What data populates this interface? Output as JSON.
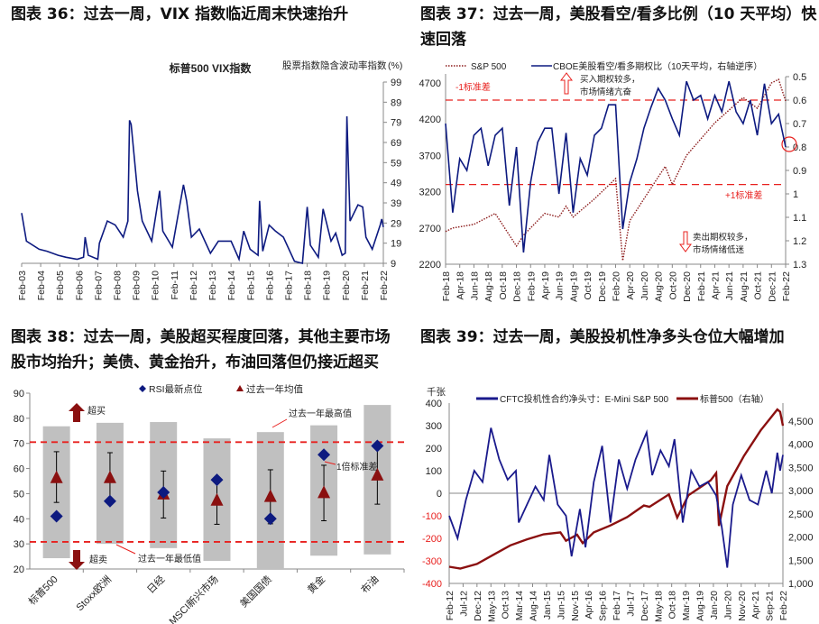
{
  "titles": {
    "c36": "图表 36：过去一周，VIX 指数临近周末快速抬升",
    "c37a": "图表 37：过去一周，美股看空/看多比例（10 天平均）快",
    "c37b": "速回落",
    "c38a": "图表 38：过去一周，美股超买程度回落，其他主要市场",
    "c38b": "股市均抬升；美债、黄金抬升，布油回落但仍接近超买",
    "c39": "图表 39：过去一周，美股投机性净多头仓位大幅增加"
  },
  "chart_data": [
    {
      "type": "line",
      "title": "标普500 VIX指数",
      "ylabel": "股票指数隐含波动率指数",
      "yunit": "(%)",
      "ylim": [
        9,
        99
      ],
      "yticks": [
        9,
        19,
        29,
        39,
        49,
        59,
        69,
        79,
        89,
        99
      ],
      "yaxis": "right",
      "xticks": [
        "Feb-03",
        "Feb-04",
        "Feb-05",
        "Feb-06",
        "Feb-07",
        "Feb-08",
        "Feb-09",
        "Feb-10",
        "Feb-11",
        "Feb-12",
        "Feb-13",
        "Feb-14",
        "Feb-15",
        "Feb-16",
        "Feb-17",
        "Feb-18",
        "Feb-19",
        "Feb-20",
        "Feb-21",
        "Feb-22"
      ],
      "color": "#0d1a80",
      "series": [
        {
          "x": [
            "2003-02",
            "2003-05",
            "2004-01",
            "2004-06",
            "2005-01",
            "2005-06",
            "2006-01",
            "2006-05",
            "2006-06",
            "2006-08",
            "2007-02",
            "2007-03",
            "2007-08",
            "2008-01",
            "2008-06",
            "2008-09",
            "2008-10",
            "2008-11",
            "2009-03",
            "2009-06",
            "2009-12",
            "2010-05",
            "2010-07",
            "2011-01",
            "2011-08",
            "2011-10",
            "2012-01",
            "2012-06",
            "2013-01",
            "2013-06",
            "2014-02",
            "2014-07",
            "2014-10",
            "2015-02",
            "2015-07",
            "2015-08",
            "2015-10",
            "2016-02",
            "2016-06",
            "2016-11",
            "2017-06",
            "2017-11",
            "2018-02",
            "2018-04",
            "2018-09",
            "2018-12",
            "2019-05",
            "2019-08",
            "2019-12",
            "2020-02",
            "2020-03",
            "2020-05",
            "2020-10",
            "2021-01",
            "2021-03",
            "2021-07",
            "2021-12",
            "2022-01",
            "2022-02"
          ],
          "values": [
            34,
            20,
            16,
            15,
            13,
            12,
            11,
            12,
            22,
            13,
            11,
            19,
            30,
            28,
            22,
            30,
            80,
            78,
            45,
            30,
            20,
            45,
            25,
            17,
            48,
            40,
            22,
            26,
            14,
            20,
            20,
            11,
            25,
            16,
            13,
            40,
            15,
            28,
            25,
            22,
            10,
            9,
            37,
            18,
            12,
            36,
            20,
            24,
            13,
            14,
            82,
            30,
            38,
            37,
            22,
            16,
            28,
            31,
            27
          ]
        }
      ]
    },
    {
      "type": "line",
      "legend": [
        "S&P 500",
        "CBOE美股看空/看多期权比（10天平均，右轴逆序）"
      ],
      "ylim_left": [
        2200,
        4700
      ],
      "yticks_left": [
        2200,
        2700,
        3200,
        3700,
        4200,
        4700
      ],
      "ylim_right": [
        0.5,
        1.3
      ],
      "right_axis_reversed": true,
      "yticks_right": [
        0.5,
        0.6,
        0.7,
        0.8,
        0.9,
        1,
        1.1,
        1.2,
        1.3
      ],
      "xticks": [
        "Feb-18",
        "Apr-18",
        "Jun-18",
        "Aug-18",
        "Oct-18",
        "Dec-18",
        "Feb-19",
        "Apr-19",
        "Jun-19",
        "Aug-19",
        "Oct-19",
        "Dec-19",
        "Feb-20",
        "Apr-20",
        "Jun-20",
        "Aug-20",
        "Oct-20",
        "Dec-20",
        "Feb-21",
        "Apr-21",
        "Jun-21",
        "Aug-21",
        "Oct-21",
        "Dec-21",
        "Feb-22"
      ],
      "minus1sd": 0.6,
      "plus1sd": 0.96,
      "annotations": {
        "minus1sd_label": "-1标准差",
        "plus1sd_label": "+1标准差",
        "up1": "买入期权较多，",
        "up2": "市场情绪亢奋",
        "down1": "卖出期权较多，",
        "down2": "市场情绪低迷"
      },
      "colors": {
        "sp": "#8b1a1a",
        "pc": "#0d1a80",
        "sd": "#e8201e"
      },
      "series": [
        {
          "name": "S&P 500",
          "axis": "left",
          "x": [
            "2018-02",
            "2018-03",
            "2018-06",
            "2018-09",
            "2018-10",
            "2018-12",
            "2019-01",
            "2019-04",
            "2019-06",
            "2019-07",
            "2019-08",
            "2019-11",
            "2020-02",
            "2020-03",
            "2020-04",
            "2020-06",
            "2020-09",
            "2020-10",
            "2020-12",
            "2021-04",
            "2021-08",
            "2021-10",
            "2021-12",
            "2022-01",
            "2022-02"
          ],
          "values": [
            2650,
            2700,
            2750,
            2900,
            2750,
            2450,
            2600,
            2900,
            2850,
            3000,
            2850,
            3100,
            3380,
            2250,
            2800,
            3100,
            3550,
            3300,
            3700,
            4150,
            4500,
            4350,
            4700,
            4750,
            4450
          ]
        },
        {
          "name": "CBOE美股看空/看多期权比（10天平均，右轴逆序）",
          "axis": "right",
          "x": [
            "2018-02",
            "2018-03",
            "2018-04",
            "2018-05",
            "2018-06",
            "2018-07",
            "2018-08",
            "2018-09",
            "2018-10",
            "2018-11",
            "2018-12",
            "2019-01",
            "2019-02",
            "2019-03",
            "2019-04",
            "2019-05",
            "2019-06",
            "2019-07",
            "2019-08",
            "2019-09",
            "2019-10",
            "2019-11",
            "2019-12",
            "2020-01",
            "2020-02",
            "2020-03",
            "2020-04",
            "2020-05",
            "2020-06",
            "2020-07",
            "2020-08",
            "2020-09",
            "2020-10",
            "2020-11",
            "2020-12",
            "2021-01",
            "2021-02",
            "2021-03",
            "2021-04",
            "2021-05",
            "2021-06",
            "2021-07",
            "2021-08",
            "2021-09",
            "2021-10",
            "2021-11",
            "2021-12",
            "2022-01",
            "2022-02"
          ],
          "values": [
            0.7,
            1.08,
            0.85,
            0.9,
            0.75,
            0.72,
            0.88,
            0.75,
            0.72,
            1.05,
            0.8,
            1.25,
            0.95,
            0.78,
            0.72,
            0.72,
            1.0,
            0.74,
            1.08,
            0.85,
            0.92,
            0.75,
            0.72,
            0.62,
            0.62,
            1.15,
            0.95,
            0.85,
            0.72,
            0.63,
            0.55,
            0.6,
            0.68,
            0.75,
            0.52,
            0.6,
            0.58,
            0.68,
            0.58,
            0.65,
            0.52,
            0.65,
            0.7,
            0.6,
            0.75,
            0.53,
            0.7,
            0.66,
            0.8
          ]
        }
      ]
    },
    {
      "type": "scatter",
      "legend": [
        "RSI最新点位",
        "过去一年均值"
      ],
      "ylim": [
        20,
        90
      ],
      "yticks": [
        20,
        30,
        40,
        50,
        60,
        70,
        80,
        90
      ],
      "categories": [
        "标普500",
        "Stoxx欧洲",
        "日经",
        "MSCI新兴市场",
        "美国国债",
        "黄金",
        "布油"
      ],
      "rsi_latest": [
        41,
        47,
        50.5,
        55.5,
        40,
        65.5,
        69
      ],
      "year_mean": [
        56,
        56,
        49.5,
        47,
        48.5,
        50,
        57
      ],
      "std_band": [
        [
          46.5,
          66.7
        ],
        [
          46,
          66.3
        ],
        [
          40.3,
          59
        ],
        [
          37.8,
          56
        ],
        [
          38,
          59.5
        ],
        [
          39.2,
          61.3
        ],
        [
          45.8,
          69
        ]
      ],
      "year_range": [
        [
          24.3,
          76.8
        ],
        [
          30,
          78.2
        ],
        [
          28.3,
          78.5
        ],
        [
          23.2,
          72
        ],
        [
          20,
          74.5
        ],
        [
          25.3,
          77.2
        ],
        [
          25.8,
          85.3
        ]
      ],
      "overbought": 70.5,
      "oversold": 30.8,
      "annotations": {
        "overbought": "超买",
        "oversold": "超卖",
        "max": "过去一年最高值",
        "min": "过去一年最低值",
        "std": "1倍标准差"
      },
      "colors": {
        "rsi": "#0d1a80",
        "mean": "#8b1010",
        "band": "#c0c0c0",
        "threshold": "#e8201e"
      }
    },
    {
      "type": "line",
      "yunit": "千张",
      "legend": [
        "CFTC投机性合约净头寸：E-Mini S&P 500",
        "标普500（右轴）"
      ],
      "ylim_left": [
        -400,
        400
      ],
      "yticks_left": [
        -400,
        -300,
        -200,
        -100,
        0,
        100,
        200,
        300,
        400
      ],
      "ylim_right": [
        1000,
        5000
      ],
      "yticks_right": [
        "1,000",
        "1,500",
        "2,000",
        "2,500",
        "3,000",
        "3,500",
        "4,000",
        "4,500"
      ],
      "xticks": [
        "Feb-12",
        "Jul-12",
        "Dec-12",
        "May-13",
        "Oct-13",
        "Mar-14",
        "Aug-14",
        "Jan-15",
        "Jun-15",
        "Nov-15",
        "Apr-16",
        "Sep-16",
        "Feb-17",
        "Jul-17",
        "Dec-17",
        "May-18",
        "Oct-18",
        "Mar-19",
        "Aug-19",
        "Jan-20",
        "Jun-20",
        "Nov-20",
        "Apr-21",
        "Sep-21",
        "Feb-22"
      ],
      "colors": {
        "cftc": "#1a1a8c",
        "sp": "#8b1010"
      },
      "series": [
        {
          "name": "CFTC投机性合约净头寸：E-Mini S&P 500",
          "axis": "left",
          "x": [
            "2012-02",
            "2012-05",
            "2012-08",
            "2012-11",
            "2013-02",
            "2013-05",
            "2013-08",
            "2013-11",
            "2014-02",
            "2014-03",
            "2014-06",
            "2014-09",
            "2014-12",
            "2015-02",
            "2015-05",
            "2015-08",
            "2015-10",
            "2016-01",
            "2016-03",
            "2016-06",
            "2016-09",
            "2016-12",
            "2017-03",
            "2017-06",
            "2017-09",
            "2018-01",
            "2018-03",
            "2018-06",
            "2018-09",
            "2018-11",
            "2019-02",
            "2019-05",
            "2019-08",
            "2019-11",
            "2020-02",
            "2020-04",
            "2020-06",
            "2020-08",
            "2020-11",
            "2021-02",
            "2021-05",
            "2021-08",
            "2021-10",
            "2021-12",
            "2022-01",
            "2022-02"
          ],
          "values": [
            -100,
            -200,
            -30,
            100,
            50,
            290,
            150,
            60,
            100,
            -130,
            -50,
            30,
            -30,
            170,
            -50,
            -100,
            -280,
            -70,
            -240,
            50,
            210,
            -130,
            150,
            20,
            150,
            270,
            80,
            190,
            120,
            240,
            -130,
            100,
            30,
            50,
            -10,
            -150,
            -330,
            -50,
            80,
            -30,
            -50,
            100,
            0,
            180,
            100,
            170
          ]
        },
        {
          "name": "标普500（右轴）",
          "axis": "right",
          "x": [
            "2012-02",
            "2012-06",
            "2012-12",
            "2013-06",
            "2013-12",
            "2014-06",
            "2014-12",
            "2015-06",
            "2015-08",
            "2015-12",
            "2016-02",
            "2016-06",
            "2016-12",
            "2017-06",
            "2017-12",
            "2018-02",
            "2018-09",
            "2018-12",
            "2019-04",
            "2019-12",
            "2020-02",
            "2020-03",
            "2020-06",
            "2020-12",
            "2021-06",
            "2021-12",
            "2022-01",
            "2022-02"
          ],
          "values": [
            1360,
            1320,
            1420,
            1620,
            1820,
            1950,
            2060,
            2100,
            1920,
            2050,
            1870,
            2100,
            2250,
            2430,
            2680,
            2650,
            2920,
            2420,
            2900,
            3220,
            3380,
            2240,
            3100,
            3750,
            4300,
            4750,
            4700,
            4400
          ]
        }
      ]
    }
  ]
}
